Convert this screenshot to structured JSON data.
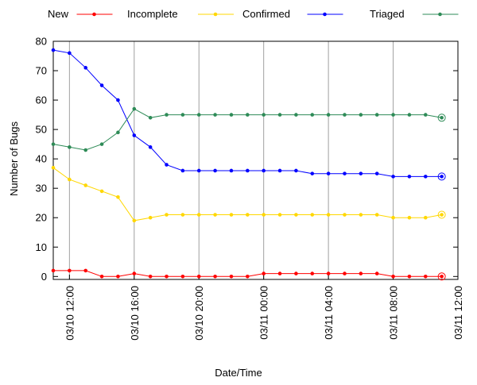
{
  "chart_data": {
    "type": "line",
    "xlabel": "Date/Time",
    "ylabel": "Number of Bugs",
    "x": [
      "03/10 11:00",
      "03/10 12:00",
      "03/10 13:00",
      "03/10 14:00",
      "03/10 15:00",
      "03/10 16:00",
      "03/10 17:00",
      "03/10 18:00",
      "03/10 19:00",
      "03/10 20:00",
      "03/10 21:00",
      "03/10 22:00",
      "03/10 23:00",
      "03/11 00:00",
      "03/11 01:00",
      "03/11 02:00",
      "03/11 03:00",
      "03/11 04:00",
      "03/11 05:00",
      "03/11 06:00",
      "03/11 07:00",
      "03/11 08:00",
      "03/11 09:00",
      "03/11 10:00",
      "03/11 11:00"
    ],
    "series": [
      {
        "name": "New",
        "color": "#ff0000",
        "values": [
          2,
          2,
          2,
          0,
          0,
          1,
          0,
          0,
          0,
          0,
          0,
          0,
          0,
          1,
          1,
          1,
          1,
          1,
          1,
          1,
          1,
          0,
          0,
          0,
          0
        ]
      },
      {
        "name": "Incomplete",
        "color": "#ffd700",
        "values": [
          37,
          33,
          31,
          29,
          27,
          19,
          20,
          21,
          21,
          21,
          21,
          21,
          21,
          21,
          21,
          21,
          21,
          21,
          21,
          21,
          21,
          20,
          20,
          20,
          21
        ]
      },
      {
        "name": "Confirmed",
        "color": "#0000ff",
        "values": [
          77,
          76,
          71,
          65,
          60,
          48,
          44,
          38,
          36,
          36,
          36,
          36,
          36,
          36,
          36,
          36,
          35,
          35,
          35,
          35,
          35,
          34,
          34,
          34,
          34
        ]
      },
      {
        "name": "Triaged",
        "color": "#2e8b57",
        "values": [
          45,
          44,
          43,
          45,
          49,
          57,
          54,
          55,
          55,
          55,
          55,
          55,
          55,
          55,
          55,
          55,
          55,
          55,
          55,
          55,
          55,
          55,
          55,
          55,
          54
        ]
      }
    ],
    "xlim": [
      "03/10 11:00",
      "03/11 12:00"
    ],
    "xticks": [
      "03/10 12:00",
      "03/10 16:00",
      "03/10 20:00",
      "03/11 00:00",
      "03/11 04:00",
      "03/11 08:00",
      "03/11 12:00"
    ],
    "ylim": [
      -1,
      80
    ],
    "yticks": [
      0,
      10,
      20,
      30,
      40,
      50,
      60,
      70,
      80
    ],
    "grid": "x"
  }
}
